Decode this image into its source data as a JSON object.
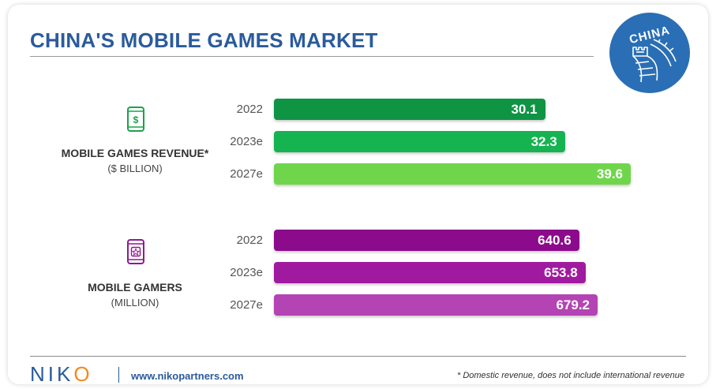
{
  "header": {
    "title": "CHINA'S MOBILE GAMES MARKET",
    "badge_text": "CHINA"
  },
  "colors": {
    "title": "#2a5b9c",
    "green_icon": "#1aa34a",
    "purple_icon": "#8e1a8e"
  },
  "chart_data": {
    "type": "bar",
    "orientation": "horizontal",
    "title": "CHINA'S MOBILE GAMES MARKET",
    "groups": [
      {
        "name": "MOBILE GAMES REVENUE*",
        "unit": "($ BILLION)",
        "icon": "dollar-phone-icon",
        "categories": [
          "2022",
          "2023e",
          "2027e"
        ],
        "values": [
          30.1,
          32.3,
          39.6
        ],
        "labels": [
          "30.1",
          "32.3",
          "39.6"
        ],
        "colors": [
          "#0f9444",
          "#16b351",
          "#6fd64b"
        ]
      },
      {
        "name": "MOBILE GAMERS",
        "unit": "(MILLION)",
        "icon": "star-phone-icon",
        "categories": [
          "2022",
          "2023e",
          "2027e"
        ],
        "values": [
          640.6,
          653.8,
          679.2
        ],
        "labels": [
          "640.6",
          "653.8",
          "679.2"
        ],
        "colors": [
          "#8c0a8c",
          "#a01aa0",
          "#b443b4"
        ]
      }
    ]
  },
  "footer": {
    "logo_text": "NIKO",
    "url": "www.nikopartners.com",
    "footnote": "* Domestic revenue, does not include international revenue"
  }
}
